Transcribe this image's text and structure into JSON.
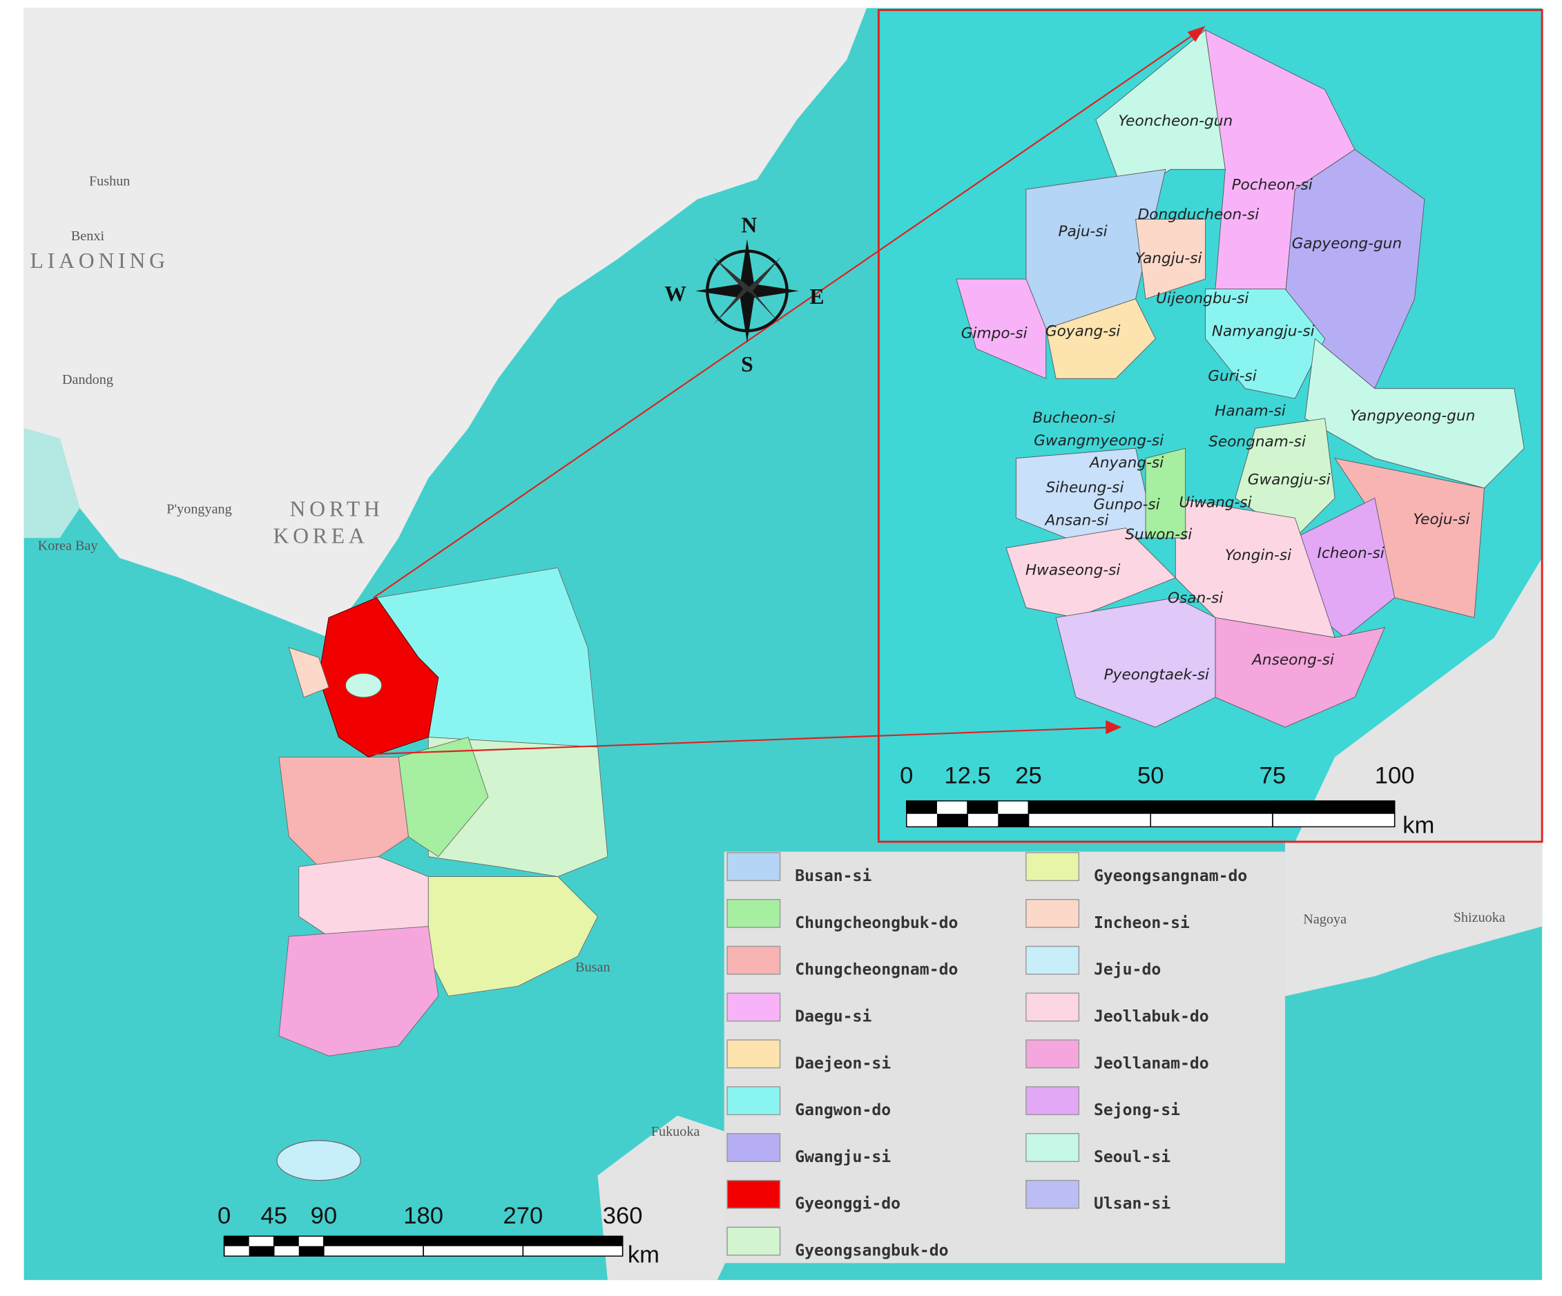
{
  "compass": {
    "n": "N",
    "s": "S",
    "e": "E",
    "w": "W"
  },
  "place_labels": [
    "Fushun",
    "Benxi",
    "LIAONING",
    "Dandong",
    "Korea Bay",
    "P'yongyang",
    "NORTH",
    "KOREA",
    "Busan",
    "Fukuoka",
    "Nagoya",
    "Shizuoka"
  ],
  "inset_labels": [
    "Yeoncheon-gun",
    "Pocheon-si",
    "Dongducheon-si",
    "Paju-si",
    "Gapyeong-gun",
    "Yangju-si",
    "Uijeongbu-si",
    "Gimpo-si",
    "Goyang-si",
    "Namyangju-si",
    "Guri-si",
    "Yangpyeong-gun",
    "Hanam-si",
    "Bucheon-si",
    "Gwangmyeong-si",
    "Seongnam-si",
    "Anyang-si",
    "Gwangju-si",
    "Siheung-si",
    "Gunpo-si",
    "Uiwang-si",
    "Yeoju-si",
    "Ansan-si",
    "Suwon-si",
    "Icheon-si",
    "Yongin-si",
    "Hwaseong-si",
    "Osan-si",
    "Anseong-si",
    "Pyeongtaek-si"
  ],
  "main_scale": {
    "ticks": [
      0,
      45,
      90,
      180,
      270,
      360
    ],
    "unit": "km"
  },
  "inset_scale": {
    "ticks": [
      0,
      12.5,
      25,
      50,
      75,
      100
    ],
    "unit": "km"
  },
  "legend": [
    {
      "name": "Busan-si",
      "color": "#b4d5f5"
    },
    {
      "name": "Chungcheongbuk-do",
      "color": "#a6eea0"
    },
    {
      "name": "Chungcheongnam-do",
      "color": "#f8b3b3"
    },
    {
      "name": "Daegu-si",
      "color": "#f8b3f8"
    },
    {
      "name": "Daejeon-si",
      "color": "#fde3ae"
    },
    {
      "name": "Gangwon-do",
      "color": "#8af5f0"
    },
    {
      "name": "Gwangju-si",
      "color": "#b5aef5"
    },
    {
      "name": "Gyeonggi-do",
      "color": "#f20000"
    },
    {
      "name": "Gyeongsangbuk-do",
      "color": "#d2f5cf"
    },
    {
      "name": "Gyeongsangnam-do",
      "color": "#e6f5a8"
    },
    {
      "name": "Incheon-si",
      "color": "#fcd8c8"
    },
    {
      "name": "Jeju-do",
      "color": "#c8eefa"
    },
    {
      "name": "Jeollabuk-do",
      "color": "#fcd6e3"
    },
    {
      "name": "Jeollanam-do",
      "color": "#f5a6dd"
    },
    {
      "name": "Sejong-si",
      "color": "#e2a8f6"
    },
    {
      "name": "Seoul-si",
      "color": "#c6f8e8"
    },
    {
      "name": "Ulsan-si",
      "color": "#bcbdf5"
    }
  ]
}
